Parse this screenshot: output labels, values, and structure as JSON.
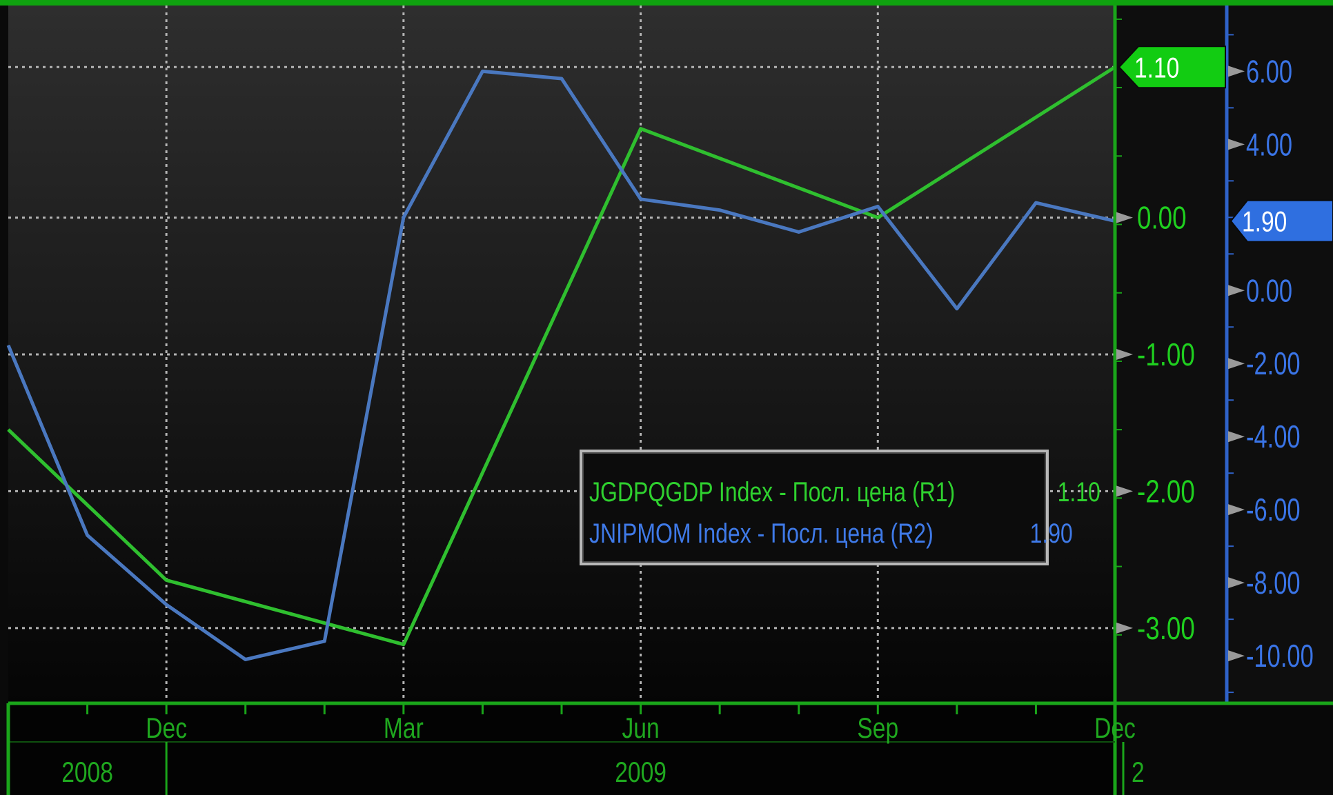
{
  "chart_data": {
    "type": "line",
    "x_ticks": [
      "Dec",
      "Mar",
      "Jun",
      "Sep",
      "Dec"
    ],
    "years": [
      "2008",
      "2009",
      "2"
    ],
    "x_range": [
      -2,
      12
    ],
    "axes": {
      "r1": {
        "color": "#1fd21f",
        "ylim": [
          -3.55,
          1.55
        ],
        "tick_values": [
          0,
          -1,
          -2,
          -3
        ],
        "tick_labels": [
          "0.00",
          "-1.00",
          "-2.00",
          "-3.00"
        ],
        "last_value": 1.1,
        "last_label": "1.10"
      },
      "r2": {
        "color": "#3a78e0",
        "ylim": [
          -11.3,
          7.8
        ],
        "tick_values": [
          6,
          4,
          0,
          -2,
          -4,
          -6,
          -8,
          -10
        ],
        "tick_labels": [
          "6.00",
          "4.00",
          "0.00",
          "-2.00",
          "-4.00",
          "-6.00",
          "-8.00",
          "-10.00"
        ],
        "last_value": 1.9,
        "last_label": "1.90"
      }
    },
    "series": [
      {
        "name": "JGDPQGDP Index - Посл. цена (R1)",
        "value_label": "1.10",
        "axis": "r1",
        "color": "#2fbf2f",
        "points": [
          [
            -2,
            -1.55
          ],
          [
            0,
            -2.65
          ],
          [
            3,
            -3.12
          ],
          [
            6,
            0.65
          ],
          [
            9,
            0.0
          ],
          [
            12,
            1.1
          ]
        ]
      },
      {
        "name": "JNIPMOM  Index - Посл. цена (R2)",
        "value_label": "1.90",
        "axis": "r2",
        "color": "#4a78c0",
        "points": [
          [
            -2,
            -1.5
          ],
          [
            -1,
            -6.7
          ],
          [
            0,
            -8.6
          ],
          [
            1,
            -10.1
          ],
          [
            2,
            -9.6
          ],
          [
            3,
            2.0
          ],
          [
            4,
            6.0
          ],
          [
            5,
            5.8
          ],
          [
            6,
            2.5
          ],
          [
            7,
            2.2
          ],
          [
            8,
            1.6
          ],
          [
            9,
            2.3
          ],
          [
            10,
            -0.5
          ],
          [
            11,
            2.4
          ],
          [
            12,
            1.9
          ]
        ]
      }
    ]
  }
}
